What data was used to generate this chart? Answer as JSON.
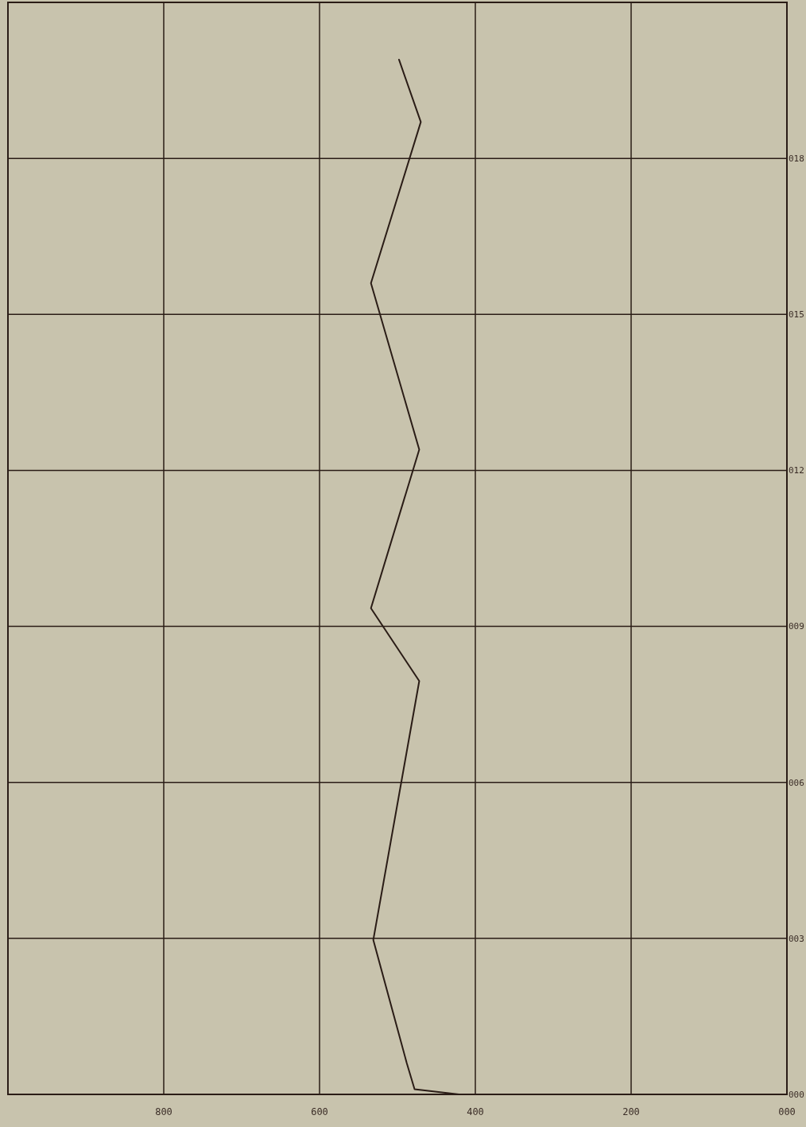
{
  "chart_data": {
    "type": "line",
    "x": [
      421,
      478,
      488,
      531,
      472,
      534,
      472,
      534,
      470,
      498
    ],
    "values": [
      0,
      0.1,
      0.6,
      2.97,
      7.95,
      9.35,
      12.4,
      15.6,
      18.7,
      19.9
    ],
    "color": "#2a1c16",
    "xlim": [
      1000,
      0
    ],
    "ylim": [
      0,
      21
    ],
    "xticks": [
      {
        "value": 0,
        "label": "000"
      },
      {
        "value": 200,
        "label": "200"
      },
      {
        "value": 400,
        "label": "400"
      },
      {
        "value": 600,
        "label": "600"
      },
      {
        "value": 800,
        "label": "800"
      }
    ],
    "yticks": [
      {
        "value": 0,
        "label": "000"
      },
      {
        "value": 3,
        "label": "003"
      },
      {
        "value": 6,
        "label": "006"
      },
      {
        "value": 9,
        "label": "009"
      },
      {
        "value": 12,
        "label": "012"
      },
      {
        "value": 15,
        "label": "015"
      },
      {
        "value": 18,
        "label": "018"
      }
    ],
    "grid": true,
    "marker": "none",
    "line_style": "solid"
  }
}
